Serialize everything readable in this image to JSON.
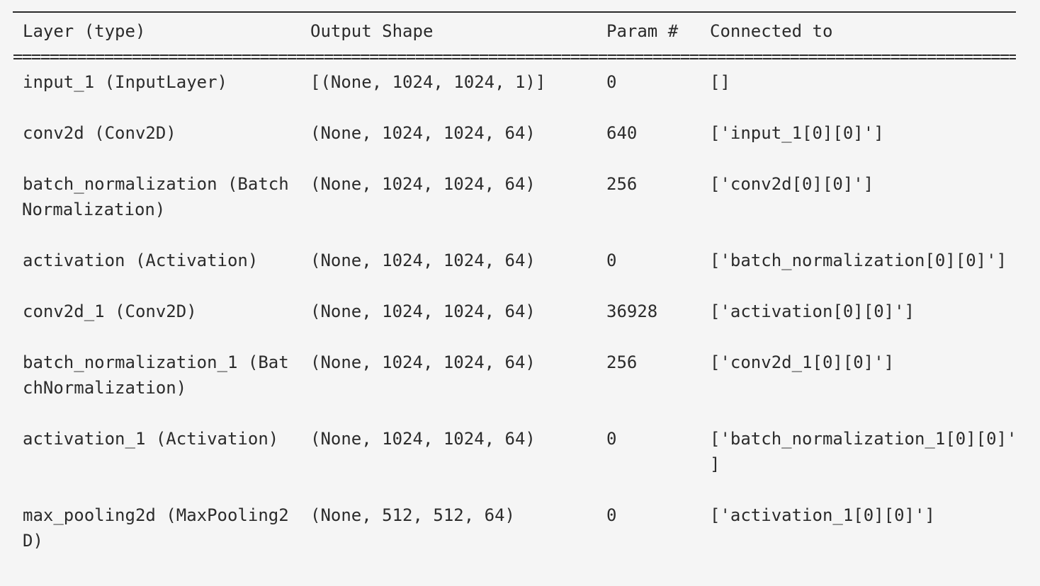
{
  "summary": {
    "headers": [
      "Layer (type)",
      "Output Shape",
      "Param #",
      "Connected to"
    ],
    "double_rule": "================================================================================================================================",
    "rows": [
      {
        "layer": "input_1 (InputLayer)",
        "layer_cont": "",
        "shape": "[(None, 1024, 1024, 1)]",
        "params": "0",
        "connected": "[]",
        "connected_cont": ""
      },
      {
        "layer": "conv2d (Conv2D)",
        "layer_cont": "",
        "shape": "(None, 1024, 1024, 64)",
        "params": "640",
        "connected": "['input_1[0][0]']",
        "connected_cont": ""
      },
      {
        "layer": "batch_normalization (Batch",
        "layer_cont": "Normalization)",
        "shape": "(None, 1024, 1024, 64)",
        "params": "256",
        "connected": "['conv2d[0][0]']",
        "connected_cont": ""
      },
      {
        "layer": "activation (Activation)",
        "layer_cont": "",
        "shape": "(None, 1024, 1024, 64)",
        "params": "0",
        "connected": "['batch_normalization[0][0]']",
        "connected_cont": ""
      },
      {
        "layer": "conv2d_1 (Conv2D)",
        "layer_cont": "",
        "shape": "(None, 1024, 1024, 64)",
        "params": "36928",
        "connected": "['activation[0][0]']",
        "connected_cont": ""
      },
      {
        "layer": "batch_normalization_1 (Bat",
        "layer_cont": "chNormalization)",
        "shape": "(None, 1024, 1024, 64)",
        "params": "256",
        "connected": "['conv2d_1[0][0]']",
        "connected_cont": ""
      },
      {
        "layer": "activation_1 (Activation)",
        "layer_cont": "",
        "shape": "(None, 1024, 1024, 64)",
        "params": "0",
        "connected": "['batch_normalization_1[0][0]'",
        "connected_cont": "]"
      },
      {
        "layer": "max_pooling2d (MaxPooling2",
        "layer_cont": "D)",
        "shape": "(None, 512, 512, 64)",
        "params": "0",
        "connected": "['activation_1[0][0]']",
        "connected_cont": ""
      }
    ]
  }
}
